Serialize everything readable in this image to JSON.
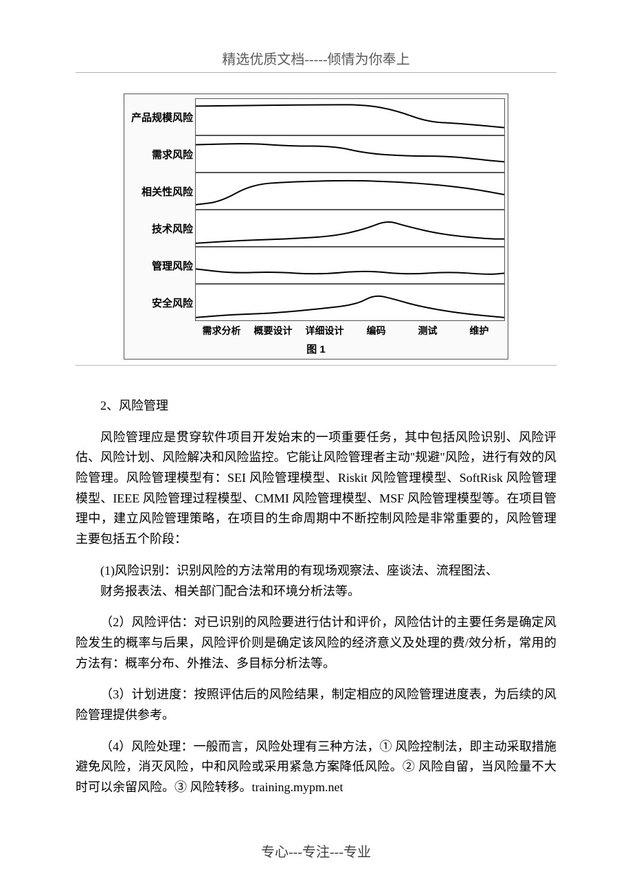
{
  "header": "精选优质文档-----倾情为你奉上",
  "footer": "专心---专注---专业",
  "chart": {
    "row_labels": [
      "产品规模风险",
      "需求风险",
      "相关性风险",
      "技术风险",
      "管理风险",
      "安全风险"
    ],
    "x_labels": [
      "需求分析",
      "概要设计",
      "详细设计",
      "编码",
      "测试",
      "维护"
    ],
    "caption": "图 1",
    "stroke": "#000000",
    "stroke_width": 2,
    "series": [
      {
        "name": "产品规模风险",
        "points": [
          [
            0,
            10
          ],
          [
            20,
            9
          ],
          [
            40,
            8
          ],
          [
            55,
            8
          ],
          [
            65,
            16
          ],
          [
            75,
            32
          ],
          [
            85,
            34
          ],
          [
            100,
            40
          ]
        ]
      },
      {
        "name": "需求风险",
        "points": [
          [
            0,
            12
          ],
          [
            18,
            10
          ],
          [
            30,
            14
          ],
          [
            45,
            14
          ],
          [
            55,
            24
          ],
          [
            68,
            28
          ],
          [
            82,
            28
          ],
          [
            95,
            34
          ],
          [
            100,
            36
          ]
        ]
      },
      {
        "name": "相关性风险",
        "points": [
          [
            0,
            44
          ],
          [
            8,
            40
          ],
          [
            18,
            16
          ],
          [
            30,
            12
          ],
          [
            50,
            10
          ],
          [
            65,
            12
          ],
          [
            78,
            16
          ],
          [
            90,
            22
          ],
          [
            100,
            30
          ]
        ]
      },
      {
        "name": "技术风险",
        "points": [
          [
            0,
            46
          ],
          [
            15,
            42
          ],
          [
            30,
            40
          ],
          [
            45,
            36
          ],
          [
            55,
            26
          ],
          [
            62,
            14
          ],
          [
            68,
            22
          ],
          [
            80,
            34
          ],
          [
            95,
            40
          ],
          [
            100,
            40
          ]
        ]
      },
      {
        "name": "管理风险",
        "points": [
          [
            0,
            30
          ],
          [
            12,
            36
          ],
          [
            25,
            34
          ],
          [
            40,
            38
          ],
          [
            55,
            32
          ],
          [
            68,
            38
          ],
          [
            82,
            34
          ],
          [
            95,
            38
          ],
          [
            100,
            36
          ]
        ]
      },
      {
        "name": "安全风险",
        "points": [
          [
            0,
            46
          ],
          [
            12,
            42
          ],
          [
            25,
            40
          ],
          [
            40,
            34
          ],
          [
            52,
            28
          ],
          [
            58,
            14
          ],
          [
            64,
            20
          ],
          [
            72,
            30
          ],
          [
            85,
            40
          ],
          [
            100,
            46
          ]
        ]
      }
    ]
  },
  "section_title": "2、风险管理",
  "p1": "风险管理应是贯穿软件项目开发始末的一项重要任务，其中包括风险识别、风险评估、风险计划、风险解决和风险监控。它能让风险管理者主动\"规避\"风险，进行有效的风险管理。风险管理模型有：SEI 风险管理模型、Riskit 风险管理模型、SoftRisk 风险管理模型、IEEE 风险管理过程模型、CMMI 风险管理模型、MSF 风险管理模型等。在项目管理中，建立风险管理策略，在项目的生命周期中不断控制风险是非常重要的，风险管理主要包括五个阶段：",
  "p2a": "(1)风险识别：识别风险的方法常用的有现场观察法、座谈法、流程图法、",
  "p2b": "财务报表法、相关部门配合法和环境分析法等。",
  "p3": "（2）风险评估：对已识别的风险要进行估计和评价，风险估计的主要任务是确定风险发生的概率与后果，风险评价则是确定该风险的经济意义及处理的费/效分析，常用的方法有：概率分布、外推法、多目标分析法等。",
  "p4": "（3）计划进度：按照评估后的风险结果，制定相应的风险管理进度表，为后续的风险管理提供参考。",
  "p5": "（4）风险处理：一般而言，风险处理有三种方法，① 风险控制法，即主动采取措施避免风险，消灭风险，中和风险或采用紧急方案降低风险。② 风险自留，当风险量不大时可以余留风险。③ 风险转移。training.mypm.net"
}
